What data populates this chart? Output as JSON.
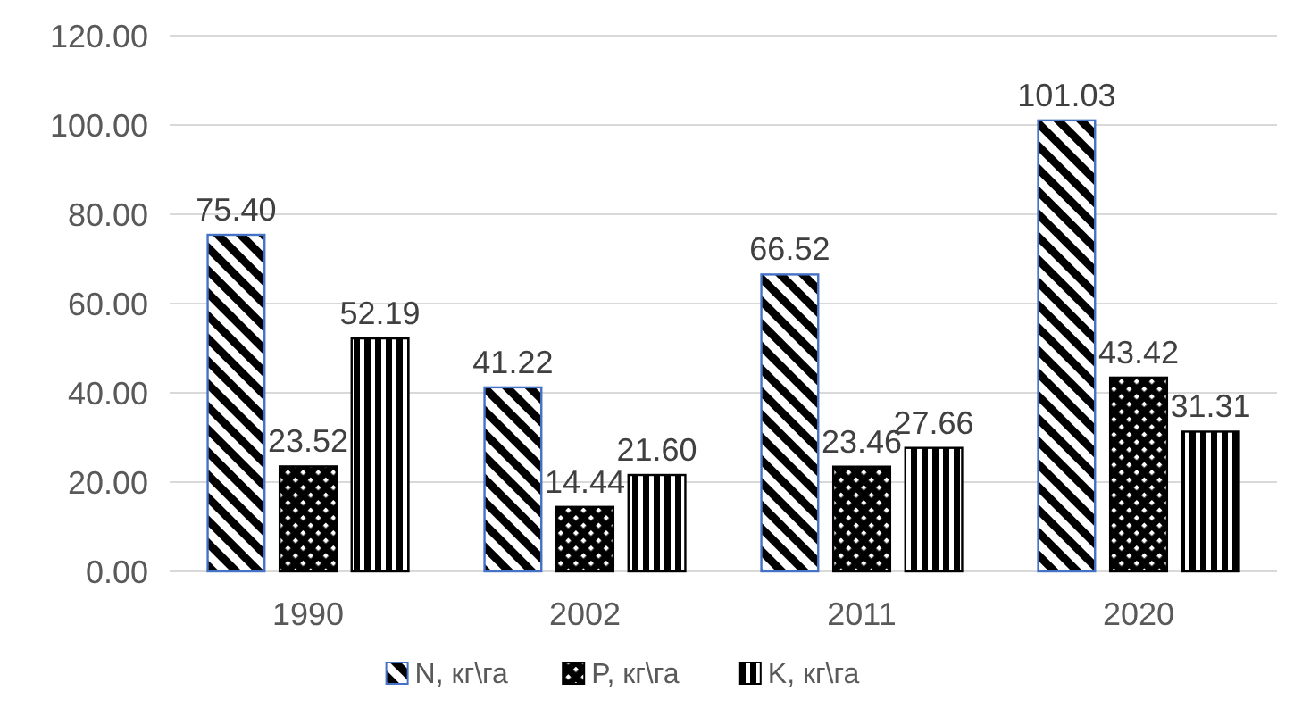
{
  "chart_data": {
    "type": "bar",
    "categories": [
      "1990",
      "2002",
      "2011",
      "2020"
    ],
    "series": [
      {
        "name": "N, кг\\га",
        "color": "#4472c4",
        "values": [
          75.4,
          41.22,
          66.52,
          101.03
        ],
        "value_labels": [
          "75.40",
          "41.22",
          "66.52",
          "101.03"
        ]
      },
      {
        "name": "P, кг\\га",
        "color": "#000000",
        "values": [
          23.52,
          14.44,
          23.46,
          43.42
        ],
        "value_labels": [
          "23.52",
          "14.44",
          "23.46",
          "43.42"
        ]
      },
      {
        "name": "K, кг\\га",
        "color": "#000000",
        "values": [
          52.19,
          21.6,
          27.66,
          31.31
        ],
        "value_labels": [
          "52.19",
          "21.60",
          "27.66",
          "31.31"
        ]
      }
    ],
    "ylim": [
      0,
      120
    ],
    "yticks": [
      {
        "value": 0,
        "label": "0.00"
      },
      {
        "value": 20,
        "label": "20.00"
      },
      {
        "value": 40,
        "label": "40.00"
      },
      {
        "value": 60,
        "label": "60.00"
      },
      {
        "value": 80,
        "label": "80.00"
      },
      {
        "value": 100,
        "label": "100.00"
      },
      {
        "value": 120,
        "label": "120.00"
      }
    ],
    "grid": "y",
    "legend": "bottom"
  }
}
